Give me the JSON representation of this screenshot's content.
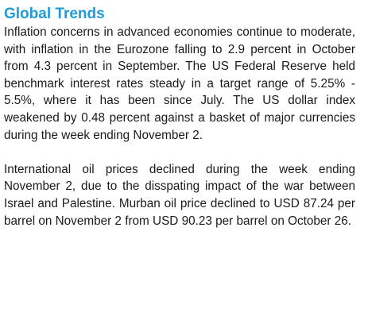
{
  "section": {
    "heading": "Global Trends",
    "heading_color": "#1f9bd7",
    "paragraphs": [
      "Inflation concerns in advanced economies continue to moderate, with inflation in the Eurozone falling to 2.9 percent in October from 4.3 percent in September. The US Federal Reserve held benchmark interest rates steady in a target range of 5.25% - 5.5%, where it has been since July. The US dollar index weakened by 0.48 percent against a basket of major currencies during the week ending November 2.",
      "International oil prices declined during the week ending November 2, due to the disspating impact of the war between Israel and Palestine. Murban oil price declined to USD 87.24 per barrel on November 2 from USD 90.23 per barrel on October 26."
    ]
  }
}
